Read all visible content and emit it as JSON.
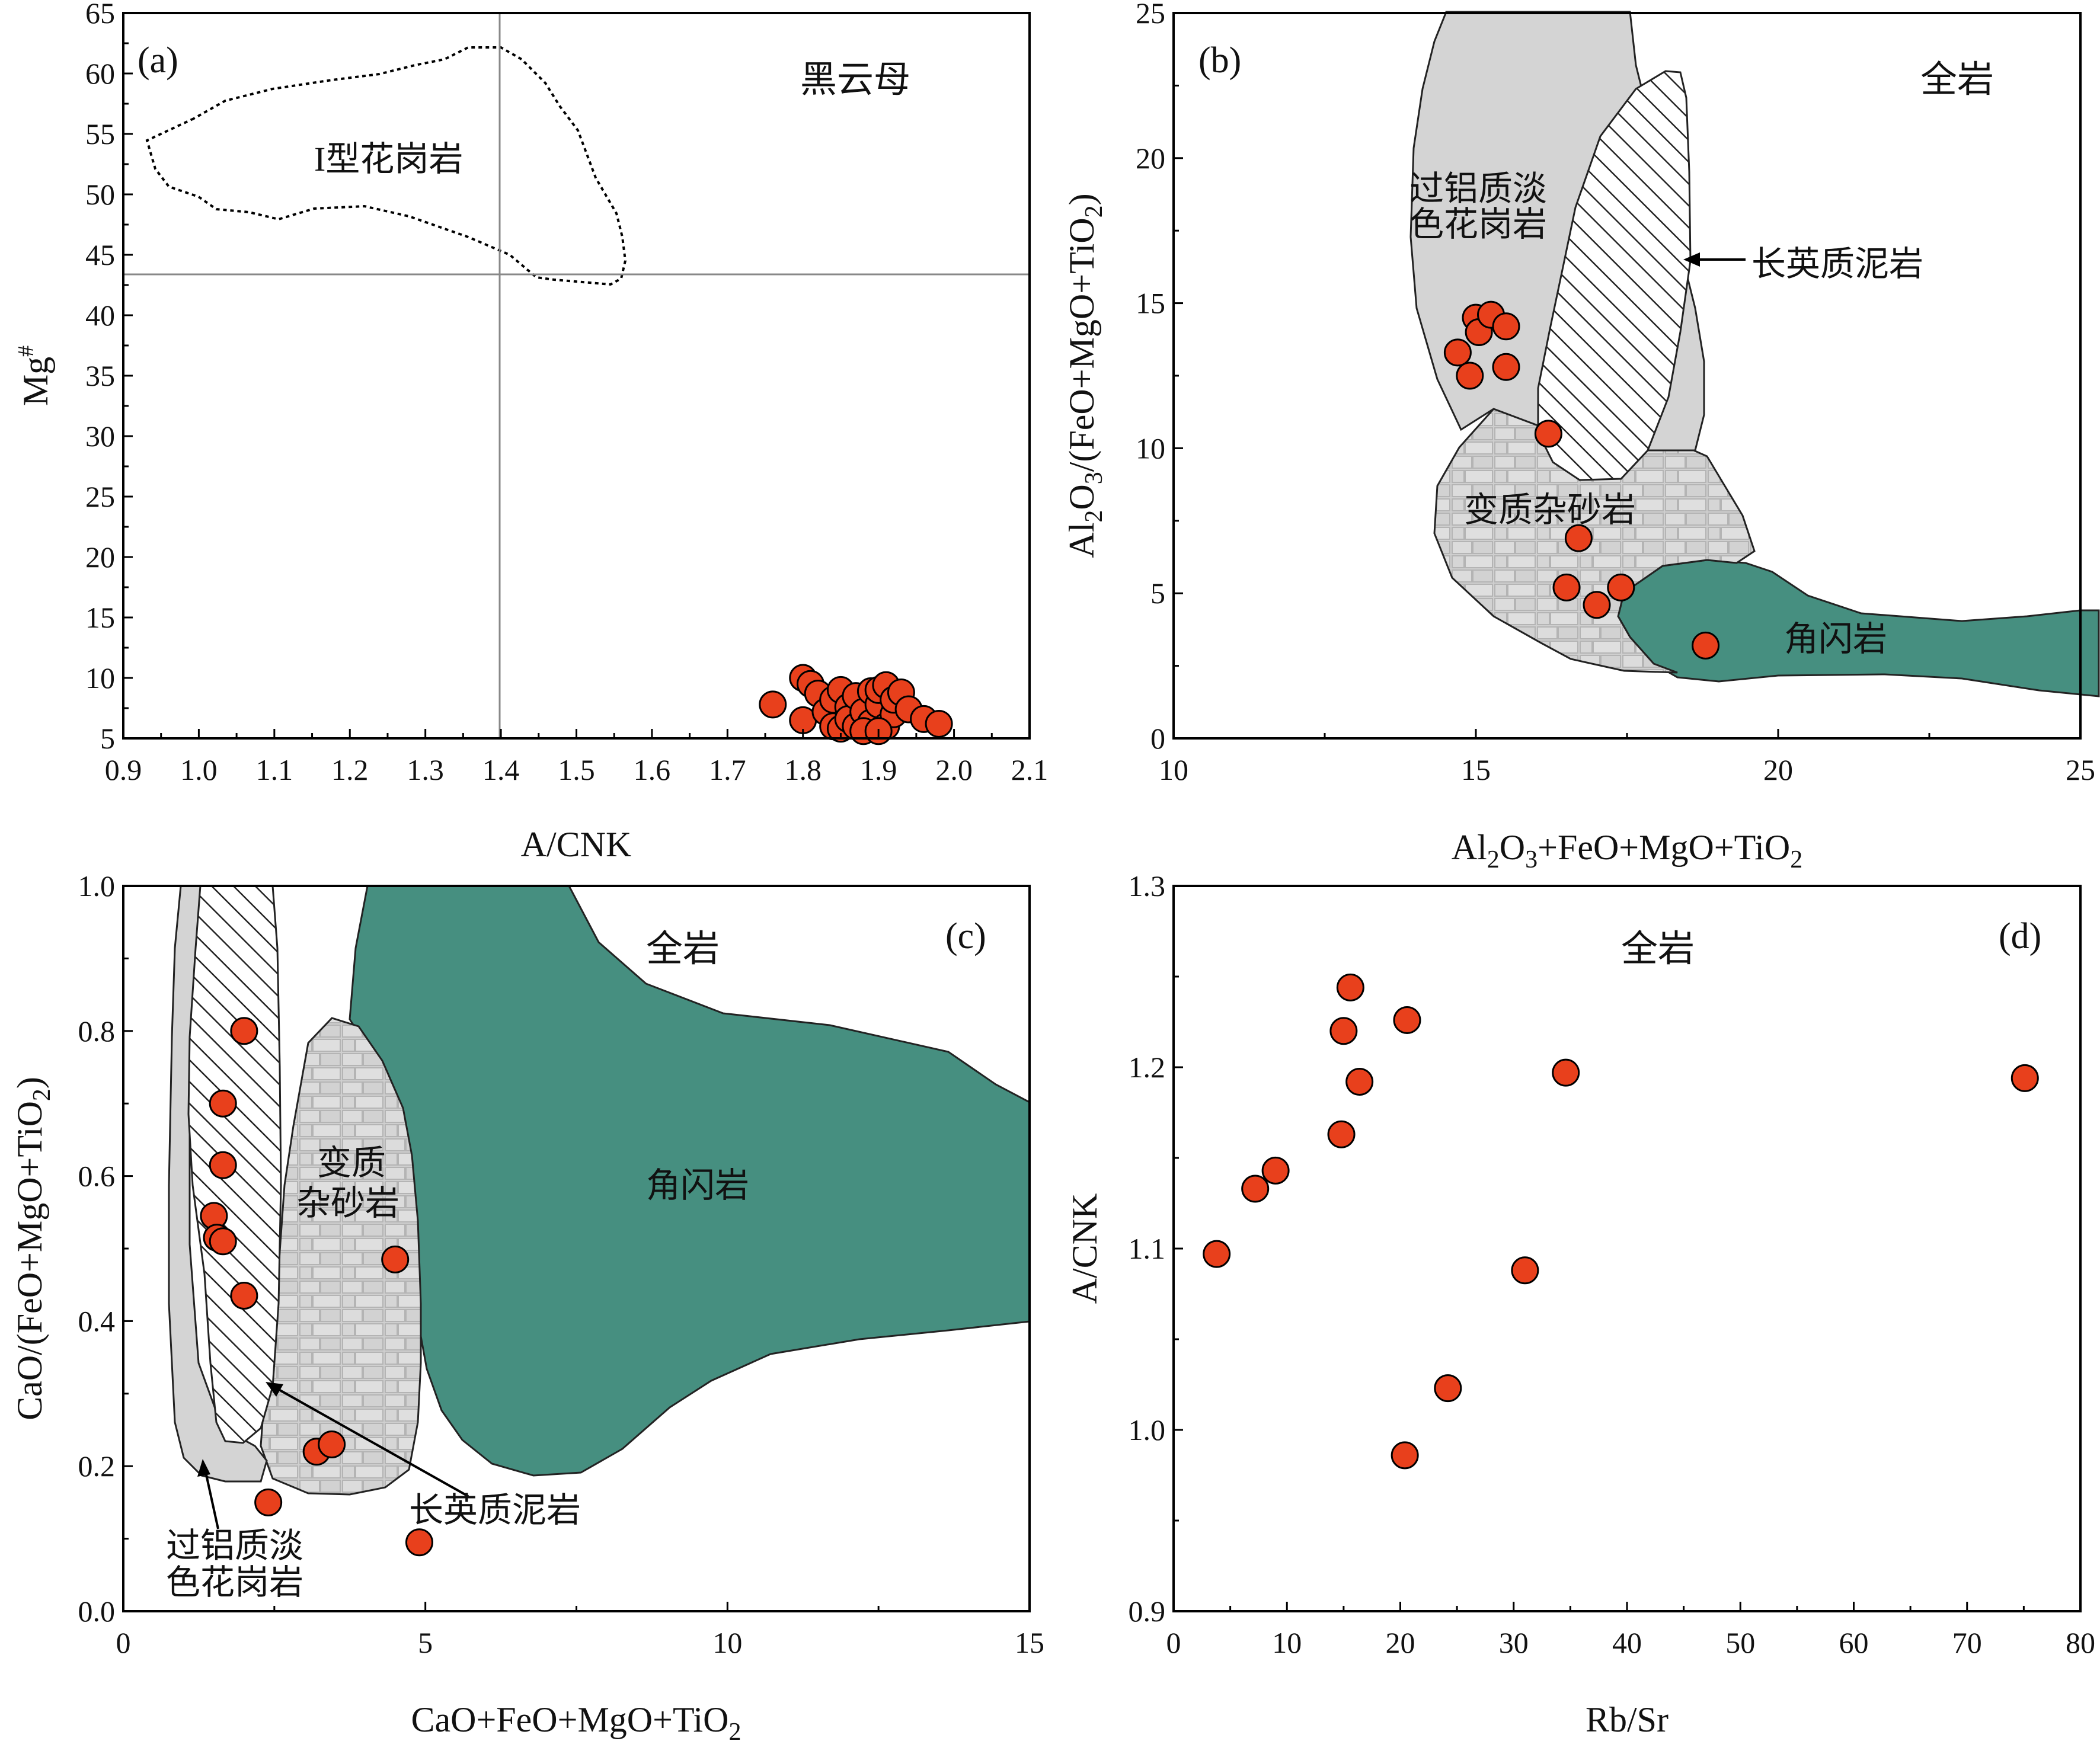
{
  "chart_data": [
    {
      "id": "a",
      "type": "scatter",
      "panel_label": "(a)",
      "title": "黑云母",
      "xlabel": "A/CNK",
      "ylabel": "Mg#",
      "xlim": [
        0.9,
        2.1
      ],
      "ylim": [
        5,
        65
      ],
      "xticks": [
        "0.9",
        "1.0",
        "1.1",
        "1.2",
        "1.3",
        "1.4",
        "1.5",
        "1.6",
        "1.7",
        "1.8",
        "1.9",
        "2.0",
        "2.1"
      ],
      "yticks": [
        "5",
        "10",
        "15",
        "20",
        "25",
        "30",
        "35",
        "40",
        "45",
        "50",
        "55",
        "60",
        "65"
      ],
      "reference_lines": {
        "x": 1.4,
        "y": 43.5
      },
      "field_label": "I型花岗岩",
      "points": [
        [
          1.76,
          7.8
        ],
        [
          1.8,
          10.0
        ],
        [
          1.8,
          6.5
        ],
        [
          1.81,
          9.5
        ],
        [
          1.82,
          8.7
        ],
        [
          1.83,
          7.2
        ],
        [
          1.84,
          6.0
        ],
        [
          1.84,
          8.2
        ],
        [
          1.85,
          9.0
        ],
        [
          1.85,
          5.8
        ],
        [
          1.86,
          7.6
        ],
        [
          1.86,
          6.6
        ],
        [
          1.87,
          8.5
        ],
        [
          1.87,
          6.0
        ],
        [
          1.88,
          7.2
        ],
        [
          1.89,
          8.9
        ],
        [
          1.89,
          6.3
        ],
        [
          1.9,
          7.8
        ],
        [
          1.9,
          9.0
        ],
        [
          1.91,
          9.4
        ],
        [
          1.91,
          6.0
        ],
        [
          1.92,
          7.0
        ],
        [
          1.92,
          8.2
        ],
        [
          1.93,
          8.8
        ],
        [
          1.94,
          7.4
        ],
        [
          1.96,
          6.6
        ],
        [
          1.98,
          6.2
        ],
        [
          1.88,
          5.6
        ],
        [
          1.9,
          5.6
        ]
      ]
    },
    {
      "id": "b",
      "type": "scatter",
      "panel_label": "(b)",
      "title": "全岩",
      "xlabel": "Al2O3+FeO+MgO+TiO2",
      "ylabel": "Al2O3/(FeO+MgO+TiO2)",
      "xlim": [
        10,
        25
      ],
      "ylim": [
        0,
        25
      ],
      "xticks": [
        "10",
        "15",
        "20",
        "25"
      ],
      "yticks": [
        "0",
        "5",
        "10",
        "15",
        "20",
        "25"
      ],
      "field_labels": {
        "peraluminous": [
          "过铝质淡",
          "色花岗岩"
        ],
        "pelite": "长英质泥岩",
        "greywacke": "变质杂砂岩",
        "amphibolite": "角闪岩"
      },
      "points": [
        [
          14.7,
          13.3
        ],
        [
          14.9,
          12.5
        ],
        [
          15.0,
          14.5
        ],
        [
          15.05,
          14.0
        ],
        [
          15.25,
          14.6
        ],
        [
          15.5,
          14.2
        ],
        [
          15.5,
          12.8
        ],
        [
          16.2,
          10.5
        ],
        [
          16.7,
          6.9
        ],
        [
          16.5,
          5.2
        ],
        [
          17.0,
          4.6
        ],
        [
          17.4,
          5.2
        ],
        [
          18.8,
          3.2
        ]
      ]
    },
    {
      "id": "c",
      "type": "scatter",
      "panel_label": "(c)",
      "title": "全岩",
      "xlabel": "CaO+FeO+MgO+TiO2",
      "ylabel": "CaO/(FeO+MgO+TiO2)",
      "xlim": [
        0,
        15
      ],
      "ylim": [
        0.0,
        1.0
      ],
      "xticks": [
        "0",
        "5",
        "10",
        "15"
      ],
      "yticks": [
        "0.0",
        "0.2",
        "0.4",
        "0.6",
        "0.8",
        "1.0"
      ],
      "field_labels": {
        "greywacke": [
          "变质",
          "杂砂岩"
        ],
        "amphibolite": "角闪岩",
        "pelite": "长英质泥岩",
        "peraluminous": [
          "过铝质淡",
          "色花岗岩"
        ]
      },
      "points": [
        [
          2.0,
          0.8
        ],
        [
          1.65,
          0.7
        ],
        [
          1.65,
          0.615
        ],
        [
          1.5,
          0.545
        ],
        [
          1.55,
          0.515
        ],
        [
          1.65,
          0.51
        ],
        [
          2.0,
          0.435
        ],
        [
          4.5,
          0.485
        ],
        [
          3.2,
          0.22
        ],
        [
          3.45,
          0.23
        ],
        [
          2.4,
          0.15
        ],
        [
          4.9,
          0.095
        ]
      ]
    },
    {
      "id": "d",
      "type": "scatter",
      "panel_label": "(d)",
      "title": "全岩",
      "xlabel": "Rb/Sr",
      "ylabel": "A/CNK",
      "xlim": [
        0,
        80
      ],
      "ylim": [
        0.9,
        1.3
      ],
      "xticks": [
        "0",
        "10",
        "20",
        "30",
        "40",
        "50",
        "60",
        "70",
        "80"
      ],
      "yticks": [
        "0.9",
        "1.0",
        "1.1",
        "1.2",
        "1.3"
      ],
      "points": [
        [
          3.8,
          1.097
        ],
        [
          7.2,
          1.133
        ],
        [
          9.0,
          1.143
        ],
        [
          14.8,
          1.163
        ],
        [
          15.0,
          1.22
        ],
        [
          15.6,
          1.244
        ],
        [
          16.4,
          1.192
        ],
        [
          20.4,
          0.986
        ],
        [
          20.6,
          1.226
        ],
        [
          24.2,
          1.023
        ],
        [
          31.0,
          1.088
        ],
        [
          34.6,
          1.197
        ],
        [
          75.1,
          1.194
        ]
      ]
    }
  ]
}
